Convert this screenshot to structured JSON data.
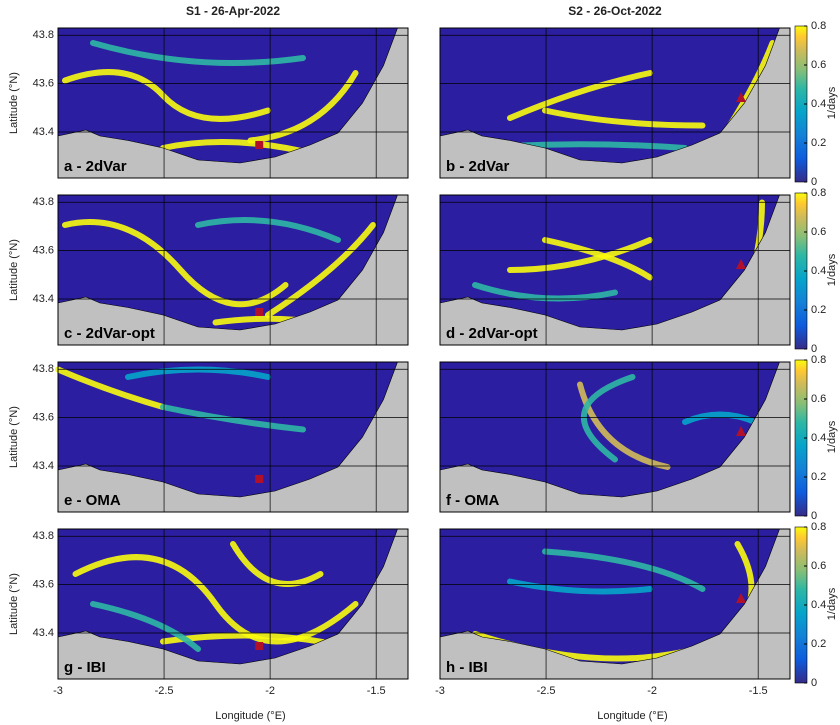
{
  "figure": {
    "column_titles": [
      "S1 - 26-Apr-2022",
      "S2 - 26-Oct-2022"
    ],
    "xlabel": "Longitude (°E)",
    "ylabel": "Latitude (°N)",
    "xlim": [
      -3,
      -1.35
    ],
    "xticks": [
      -3,
      -2.5,
      -2,
      -1.5
    ],
    "ylim": [
      43.21,
      43.83
    ],
    "yticks": [
      43.4,
      43.6,
      43.8
    ],
    "colorbar": {
      "label": "1/days",
      "lim": [
        0,
        0.8
      ],
      "ticks": [
        0,
        0.2,
        0.4,
        0.6,
        0.8
      ]
    },
    "panels": [
      {
        "label": "a  - 2dVar"
      },
      {
        "label": "b  - 2dVar"
      },
      {
        "label": "c  - 2dVar-opt"
      },
      {
        "label": "d  - 2dVar-opt"
      },
      {
        "label": "e  - OMA"
      },
      {
        "label": "f  - OMA"
      },
      {
        "label": "g  - IBI"
      },
      {
        "label": "h  - IBI"
      }
    ]
  }
}
